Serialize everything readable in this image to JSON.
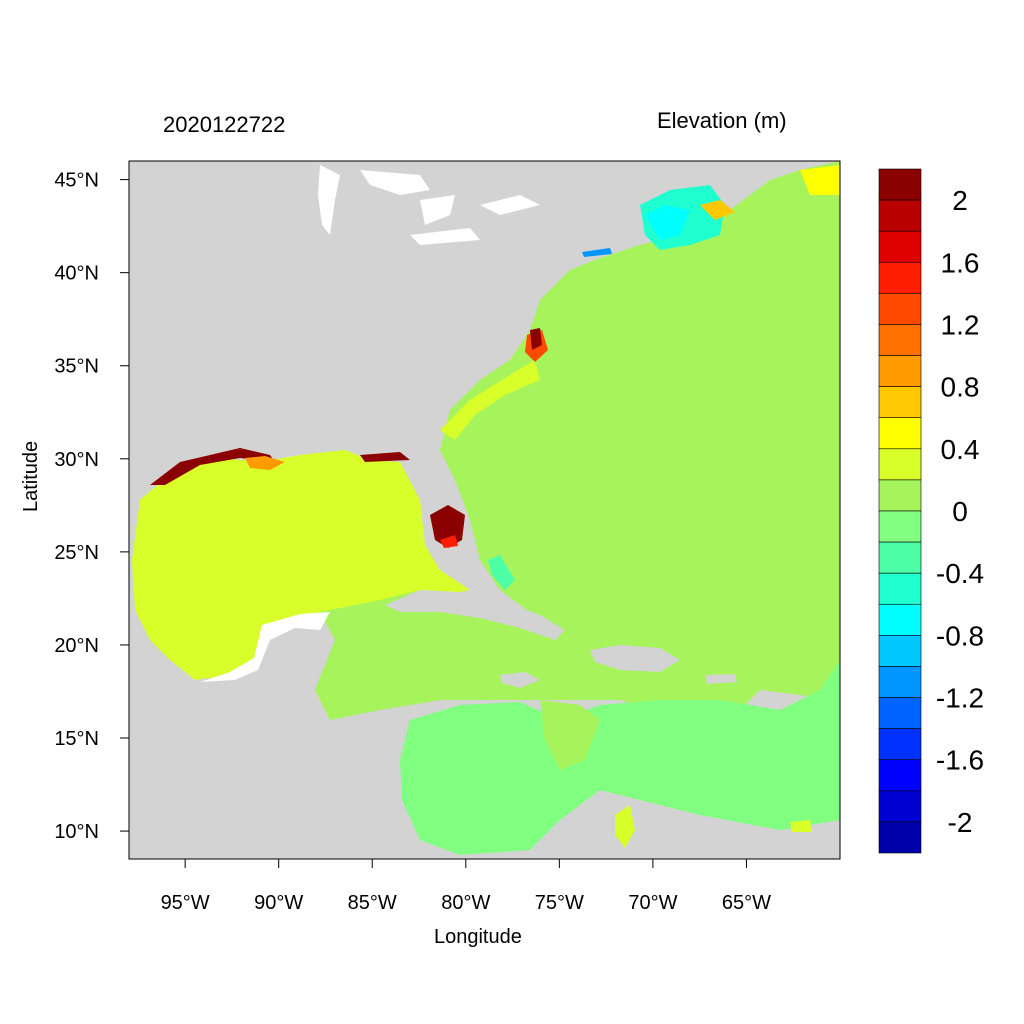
{
  "map": {
    "timestamp_label": "2020122722",
    "variable_label": "Elevation (m)",
    "xlabel": "Longitude",
    "ylabel": "Latitude",
    "lon_range": [
      -98,
      -60
    ],
    "lat_range": [
      8.5,
      46
    ],
    "lon_ticks": [
      "95°W",
      "90°W",
      "85°W",
      "80°W",
      "75°W",
      "70°W",
      "65°W"
    ],
    "lon_tick_values": [
      -95,
      -90,
      -85,
      -80,
      -75,
      -70,
      -65
    ],
    "lat_ticks": [
      "45°N",
      "40°N",
      "35°N",
      "30°N",
      "25°N",
      "20°N",
      "15°N",
      "10°N"
    ],
    "lat_tick_values": [
      45,
      40,
      35,
      30,
      25,
      20,
      15,
      10
    ],
    "colors": {
      "land": "#d3d3d3",
      "open_ocean": "#a6f35b",
      "gulf_of_mexico": "#d8ff2a",
      "caribbean_south": "#80ff80",
      "high_surge": "#8b0000"
    }
  },
  "colorbar": {
    "labels": [
      "2",
      "1.6",
      "1.2",
      "0.8",
      "0.4",
      "0",
      "-0.4",
      "-0.8",
      "-1.2",
      "-1.6",
      "-2"
    ],
    "colors": [
      "#8b0000",
      "#b80000",
      "#e00000",
      "#ff1e00",
      "#ff4a00",
      "#ff7000",
      "#ff9a00",
      "#ffc800",
      "#ffff00",
      "#d8ff2a",
      "#a6f35b",
      "#80ff80",
      "#4dffa6",
      "#20ffd0",
      "#00ffff",
      "#00c8ff",
      "#0096ff",
      "#0064ff",
      "#0032ff",
      "#0000ff",
      "#0000d0",
      "#0000aa"
    ]
  }
}
